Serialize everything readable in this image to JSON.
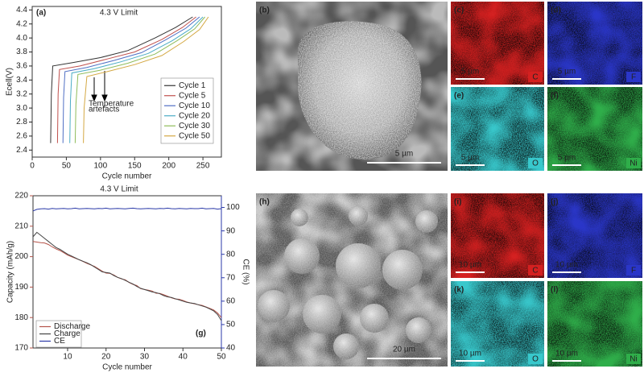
{
  "chart_data": [
    {
      "type": "line",
      "panel_label": "(a)",
      "title": "4.3 V Limit",
      "x_label": "Cycle number",
      "y_label": "Ecell(V)",
      "annotation": [
        "Temperature",
        "artefacts"
      ],
      "xlim": [
        0,
        277
      ],
      "xticks": [
        0,
        50,
        100,
        150,
        200,
        250
      ],
      "ylim": [
        2.3,
        4.45
      ],
      "yticks": [
        2.4,
        2.6,
        2.8,
        {
          "value": 3,
          "label": "3.0"
        },
        3.2,
        3.4,
        3.6,
        3.8,
        {
          "value": 4,
          "label": "4.0"
        },
        4.2,
        4.4
      ],
      "legend": "lower right",
      "series": [
        {
          "name": "Cycle 1",
          "color": "#333333",
          "x": [
            27,
            28,
            30,
            60,
            100,
            140,
            180,
            210,
            235
          ],
          "values": [
            2.5,
            3.2,
            3.6,
            3.65,
            3.72,
            3.82,
            4.0,
            4.15,
            4.3
          ]
        },
        {
          "name": "Cycle 5",
          "color": "#c0504d",
          "x": [
            37,
            38,
            40,
            70,
            110,
            150,
            190,
            220,
            240
          ],
          "values": [
            2.5,
            3.2,
            3.55,
            3.6,
            3.7,
            3.8,
            3.98,
            4.15,
            4.3
          ]
        },
        {
          "name": "Cycle 10",
          "color": "#4f6fc4",
          "x": [
            45,
            46,
            48,
            80,
            120,
            160,
            195,
            225,
            245
          ],
          "values": [
            2.5,
            3.15,
            3.52,
            3.58,
            3.68,
            3.79,
            3.97,
            4.14,
            4.3
          ]
        },
        {
          "name": "Cycle 20",
          "color": "#4bacc6",
          "x": [
            55,
            56,
            58,
            90,
            130,
            170,
            205,
            232,
            250
          ],
          "values": [
            2.5,
            3.1,
            3.5,
            3.56,
            3.66,
            3.78,
            3.96,
            4.13,
            4.3
          ]
        },
        {
          "name": "Cycle 30",
          "color": "#8fbc5a",
          "x": [
            63,
            64,
            67,
            100,
            140,
            180,
            212,
            238,
            253
          ],
          "values": [
            2.5,
            3.05,
            3.48,
            3.54,
            3.64,
            3.77,
            3.96,
            4.13,
            4.3
          ]
        },
        {
          "name": "Cycle 50",
          "color": "#d4a843",
          "x": [
            75,
            76,
            80,
            110,
            150,
            190,
            222,
            245,
            258
          ],
          "values": [
            2.5,
            3.0,
            3.45,
            3.52,
            3.62,
            3.75,
            3.95,
            4.12,
            4.3
          ]
        }
      ]
    },
    {
      "type": "line",
      "panel_label": "(g)",
      "title": "4.3 V Limit",
      "x_label": "Cycle number",
      "y_label": "Capacity (mAh/g)",
      "y2_label": "CE (%)",
      "xlim": [
        1,
        50
      ],
      "xticks": [
        10,
        20,
        30,
        40,
        50
      ],
      "ylim": [
        170,
        220
      ],
      "yticks": [
        170,
        180,
        190,
        200,
        210,
        220
      ],
      "y_color": "#b5544a",
      "y2lim": [
        40,
        105
      ],
      "y2ticks": [
        40,
        50,
        60,
        70,
        80,
        90,
        100
      ],
      "y2_color": "#2b3aa8",
      "legend": "lower left",
      "x": [
        1,
        2,
        3,
        4,
        5,
        6,
        7,
        8,
        9,
        10,
        11,
        12,
        13,
        14,
        15,
        16,
        17,
        18,
        19,
        20,
        21,
        22,
        23,
        24,
        25,
        26,
        27,
        28,
        29,
        30,
        31,
        32,
        33,
        34,
        35,
        36,
        37,
        38,
        39,
        40,
        41,
        42,
        43,
        44,
        45,
        46,
        47,
        48,
        49,
        50
      ],
      "series": [
        {
          "name": "Discharge",
          "color": "#b5544a",
          "values": [
            205,
            204.8,
            204.6,
            204.5,
            204,
            203.2,
            202.5,
            202,
            201.3,
            200.5,
            200,
            199.5,
            199,
            198.4,
            197.8,
            197.3,
            196.8,
            196,
            195.2,
            194.6,
            194.5,
            194,
            193.2,
            192.7,
            192.4,
            191.5,
            190.9,
            190.5,
            189.5,
            189.2,
            189,
            188.7,
            188,
            187.9,
            187.5,
            187,
            186.5,
            186.1,
            186,
            185.6,
            185.1,
            184.8,
            184.5,
            184.2,
            184,
            183.5,
            183,
            182.5,
            181.5,
            180
          ]
        },
        {
          "name": "Charge",
          "color": "#444444",
          "values": [
            206.5,
            208,
            207,
            206,
            205,
            204,
            203,
            202.4,
            201.6,
            200.8,
            200.2,
            199.6,
            199,
            198.5,
            198,
            197.4,
            196.6,
            195.8,
            195,
            194.8,
            194.6,
            193.8,
            193.2,
            192.8,
            192.2,
            191.6,
            191,
            190.2,
            189.6,
            189.2,
            188.8,
            188.4,
            188.2,
            187.8,
            187.2,
            186.8,
            186.6,
            186.2,
            185.8,
            185.4,
            185,
            184.8,
            184.6,
            184.2,
            183.8,
            183.4,
            182.8,
            182.2,
            181,
            179
          ]
        },
        {
          "name": "CE",
          "color": "#2b3aa8",
          "axis": "y2",
          "values": [
            98.5,
            99.2,
            99.4,
            99.5,
            99.3,
            99.6,
            99.4,
            99.5,
            99.6,
            99.4,
            99.5,
            99.7,
            99.4,
            99.5,
            99.6,
            99.5,
            99.4,
            99.6,
            99.5,
            99.7,
            99.4,
            99.5,
            99.6,
            99.5,
            99.4,
            99.6,
            99.7,
            99.5,
            99.4,
            99.5,
            99.6,
            99.5,
            99.4,
            99.6,
            99.5,
            99.7,
            99.5,
            99.4,
            99.6,
            99.5,
            99.4,
            99.6,
            99.5,
            99.5,
            99.7,
            99.4,
            99.5,
            99.6,
            99.3,
            99.5
          ]
        }
      ]
    }
  ],
  "panels": [
    {
      "label": "(b)",
      "scale": "5 µm"
    },
    {
      "label": "(c)",
      "scale": "5 µm",
      "element": "C"
    },
    {
      "label": "(d)",
      "scale": "5 µm",
      "element": "F"
    },
    {
      "label": "(e)",
      "scale": "5 µm",
      "element": "O"
    },
    {
      "label": "(f)",
      "scale": "5 µm",
      "element": "Ni"
    },
    {
      "label": "(h)",
      "scale": "20 µm"
    },
    {
      "label": "(i)",
      "scale": "10 µm",
      "element": "C"
    },
    {
      "label": "(j)",
      "scale": "10 µm",
      "element": "F"
    },
    {
      "label": "(k)",
      "scale": "10 µm",
      "element": "O"
    },
    {
      "label": "(l)",
      "scale": "10 µm",
      "element": "Ni"
    }
  ]
}
